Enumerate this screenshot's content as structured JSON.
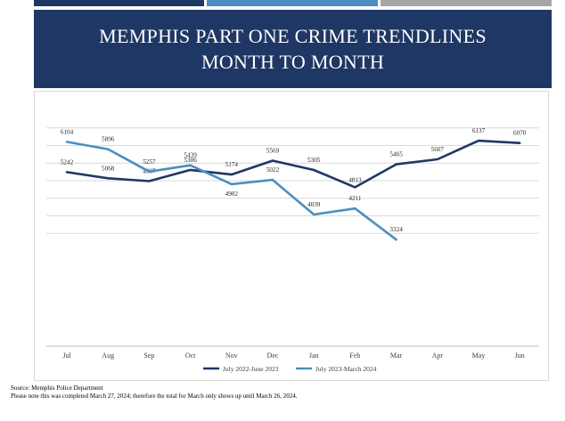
{
  "title": {
    "line1": "MEMPHIS PART ONE CRIME TRENDLINES",
    "line2": "MONTH TO MONTH"
  },
  "colors": {
    "header_bg": "#1f3764",
    "series1": "#1f3764",
    "series2": "#4a8fc0",
    "gridline": "#d9d9d9"
  },
  "chart_data": {
    "type": "line",
    "categories": [
      "Jul",
      "Aug",
      "Sep",
      "Oct",
      "Nov",
      "Dec",
      "Jan",
      "Feb",
      "Mar",
      "Apr",
      "May",
      "Jun"
    ],
    "series": [
      {
        "name": "July 2022-June 2023",
        "color": "#1f3764",
        "values": [
          5242,
          5068,
          4987,
          5306,
          5174,
          5569,
          5305,
          4813,
          5465,
          5607,
          6137,
          6070
        ]
      },
      {
        "name": "July 2023-March 2024",
        "color": "#4a8fc0",
        "values": [
          6104,
          5896,
          5257,
          5439,
          4902,
          5022,
          4039,
          4211,
          3324,
          null,
          null,
          null
        ]
      }
    ],
    "ylim": [
      3200,
      6200
    ],
    "grid": true,
    "legend": "bottom"
  },
  "footer": {
    "source": "Source: Memphis Police Department",
    "note": "Please note this was completed March 27, 2024; therefore the total for March only shows up until March 26, 2024."
  }
}
